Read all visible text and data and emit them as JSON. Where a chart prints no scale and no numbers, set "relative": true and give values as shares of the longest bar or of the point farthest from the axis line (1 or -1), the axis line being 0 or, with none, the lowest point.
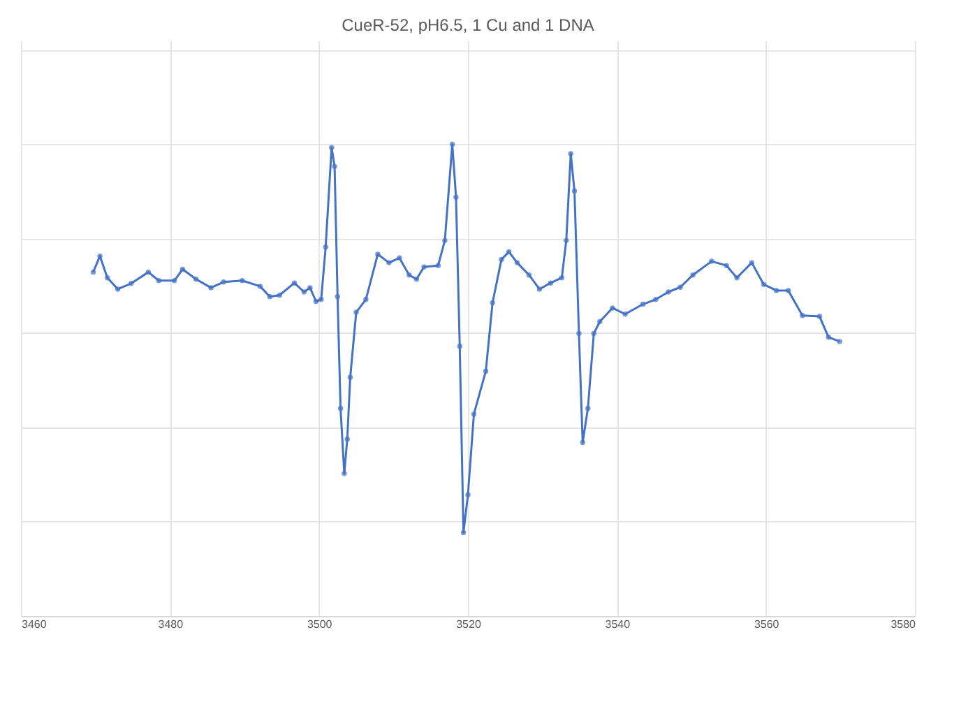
{
  "chart_data": {
    "type": "line",
    "title": "CueR-52, pH6.5, 1 Cu and 1 DNA",
    "relative": true,
    "marker": "circle",
    "grid": true,
    "xlim": [
      3460,
      3580
    ],
    "xticks": [
      3460,
      3480,
      3500,
      3520,
      3540,
      3560,
      3580
    ],
    "series": [
      {
        "color": "#4472c4",
        "x": [
          3469.7,
          3470.6,
          3471.6,
          3473.0,
          3474.8,
          3477.1,
          3478.5,
          3480.6,
          3481.7,
          3483.5,
          3485.5,
          3487.2,
          3489.7,
          3492.1,
          3493.4,
          3494.7,
          3496.7,
          3498.0,
          3498.8,
          3499.6,
          3500.3,
          3500.9,
          3501.7,
          3502.1,
          3502.5,
          3502.9,
          3503.4,
          3503.8,
          3504.2,
          3505.0,
          3506.3,
          3507.9,
          3509.4,
          3510.8,
          3512.1,
          3513.1,
          3514.1,
          3516.0,
          3516.9,
          3517.9,
          3518.4,
          3518.9,
          3519.4,
          3520.0,
          3520.8,
          3522.4,
          3523.3,
          3524.5,
          3525.5,
          3526.6,
          3528.2,
          3529.6,
          3531.1,
          3532.6,
          3533.2,
          3533.8,
          3534.3,
          3534.9,
          3535.4,
          3536.1,
          3536.9,
          3537.7,
          3539.4,
          3541.1,
          3543.5,
          3545.2,
          3546.9,
          3548.5,
          3550.2,
          3552.7,
          3554.7,
          3556.1,
          3558.1,
          3559.7,
          3561.4,
          3563.0,
          3564.9,
          3567.2,
          3568.4,
          3569.9
        ],
        "values": [
          0.729,
          0.763,
          0.717,
          0.693,
          0.705,
          0.729,
          0.711,
          0.711,
          0.735,
          0.714,
          0.696,
          0.708,
          0.711,
          0.699,
          0.677,
          0.68,
          0.706,
          0.687,
          0.696,
          0.667,
          0.671,
          0.782,
          0.993,
          0.953,
          0.677,
          0.44,
          0.302,
          0.375,
          0.506,
          0.644,
          0.671,
          0.767,
          0.749,
          0.759,
          0.723,
          0.714,
          0.74,
          0.743,
          0.796,
          1.0,
          0.888,
          0.572,
          0.177,
          0.257,
          0.428,
          0.519,
          0.664,
          0.756,
          0.772,
          0.749,
          0.723,
          0.693,
          0.706,
          0.717,
          0.796,
          0.98,
          0.901,
          0.599,
          0.368,
          0.44,
          0.599,
          0.624,
          0.653,
          0.64,
          0.661,
          0.671,
          0.687,
          0.697,
          0.723,
          0.752,
          0.743,
          0.717,
          0.749,
          0.703,
          0.69,
          0.69,
          0.637,
          0.635,
          0.591,
          0.582
        ]
      }
    ]
  }
}
